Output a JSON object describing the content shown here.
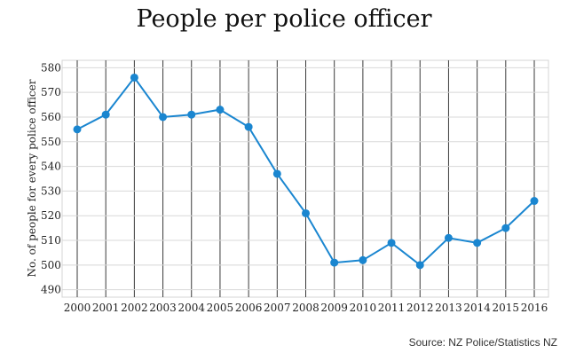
{
  "chart_data": {
    "type": "line",
    "title": "People per police officer",
    "xlabel": "",
    "ylabel": "No. of people for every police officer",
    "x": [
      "2000",
      "2001",
      "2002",
      "2003",
      "2004",
      "2005",
      "2006",
      "2007",
      "2008",
      "2009",
      "2010",
      "2011",
      "2012",
      "2013",
      "2014",
      "2015",
      "2016"
    ],
    "series": [
      {
        "values": [
          555,
          561,
          576,
          560,
          561,
          563,
          556,
          537,
          521,
          501,
          502,
          509,
          500,
          511,
          509,
          515,
          526
        ]
      }
    ],
    "yticks": [
      490,
      500,
      510,
      520,
      530,
      540,
      550,
      560,
      570,
      580
    ],
    "ylim": [
      487,
      583
    ],
    "grid": true,
    "line_color": "#1a86d0"
  },
  "source": "Source: NZ Police/Statistics NZ"
}
